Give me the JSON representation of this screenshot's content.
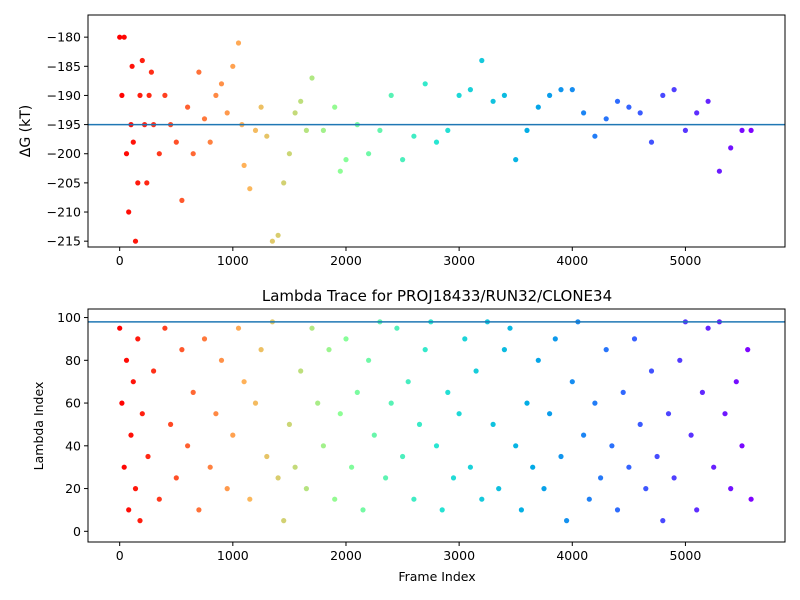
{
  "chart_data": [
    {
      "type": "scatter",
      "title": "",
      "xlabel": "",
      "ylabel": "ΔG (kT)",
      "xlim": [
        -280,
        5880
      ],
      "ylim": [
        -216,
        -176.2
      ],
      "xticks": [
        0,
        1000,
        2000,
        3000,
        4000,
        5000
      ],
      "xtick_labels": [
        "0",
        "1000",
        "2000",
        "3000",
        "4000",
        "5000"
      ],
      "yticks": [
        -215,
        -210,
        -205,
        -200,
        -195,
        -190,
        -185,
        -180
      ],
      "ytick_labels": [
        "−215",
        "−210",
        "−205",
        "−200",
        "−195",
        "−190",
        "−185",
        "−180"
      ],
      "hline": -195,
      "colormap": "rainbow (red at frame 0 → violet at frame 5600)",
      "grid": false,
      "series_points": [
        [
          0,
          -180
        ],
        [
          20,
          -190
        ],
        [
          40,
          -180
        ],
        [
          60,
          -200
        ],
        [
          80,
          -210
        ],
        [
          100,
          -195
        ],
        [
          110,
          -185
        ],
        [
          120,
          -198
        ],
        [
          140,
          -215
        ],
        [
          160,
          -205
        ],
        [
          180,
          -190
        ],
        [
          200,
          -184
        ],
        [
          220,
          -195
        ],
        [
          240,
          -205
        ],
        [
          260,
          -190
        ],
        [
          280,
          -186
        ],
        [
          300,
          -195
        ],
        [
          350,
          -200
        ],
        [
          400,
          -190
        ],
        [
          450,
          -195
        ],
        [
          500,
          -198
        ],
        [
          550,
          -208
        ],
        [
          600,
          -192
        ],
        [
          650,
          -200
        ],
        [
          700,
          -186
        ],
        [
          750,
          -194
        ],
        [
          800,
          -198
        ],
        [
          850,
          -190
        ],
        [
          900,
          -188
        ],
        [
          950,
          -193
        ],
        [
          1000,
          -185
        ],
        [
          1050,
          -181
        ],
        [
          1080,
          -195
        ],
        [
          1100,
          -202
        ],
        [
          1150,
          -206
        ],
        [
          1200,
          -196
        ],
        [
          1250,
          -192
        ],
        [
          1300,
          -197
        ],
        [
          1350,
          -215
        ],
        [
          1400,
          -214
        ],
        [
          1450,
          -205
        ],
        [
          1500,
          -200
        ],
        [
          1550,
          -193
        ],
        [
          1600,
          -191
        ],
        [
          1650,
          -196
        ],
        [
          1700,
          -187
        ],
        [
          1800,
          -196
        ],
        [
          1900,
          -192
        ],
        [
          1950,
          -203
        ],
        [
          2000,
          -201
        ],
        [
          2100,
          -195
        ],
        [
          2200,
          -200
        ],
        [
          2300,
          -196
        ],
        [
          2400,
          -190
        ],
        [
          2500,
          -201
        ],
        [
          2600,
          -197
        ],
        [
          2700,
          -188
        ],
        [
          2800,
          -198
        ],
        [
          2900,
          -196
        ],
        [
          3000,
          -190
        ],
        [
          3100,
          -189
        ],
        [
          3200,
          -184
        ],
        [
          3300,
          -191
        ],
        [
          3400,
          -190
        ],
        [
          3500,
          -201
        ],
        [
          3600,
          -196
        ],
        [
          3700,
          -192
        ],
        [
          3800,
          -190
        ],
        [
          3900,
          -189
        ],
        [
          4000,
          -189
        ],
        [
          4100,
          -193
        ],
        [
          4200,
          -197
        ],
        [
          4300,
          -194
        ],
        [
          4400,
          -191
        ],
        [
          4500,
          -192
        ],
        [
          4600,
          -193
        ],
        [
          4700,
          -198
        ],
        [
          4800,
          -190
        ],
        [
          4900,
          -189
        ],
        [
          5000,
          -196
        ],
        [
          5100,
          -193
        ],
        [
          5200,
          -191
        ],
        [
          5300,
          -203
        ],
        [
          5400,
          -199
        ],
        [
          5500,
          -196
        ],
        [
          5580,
          -196
        ]
      ]
    },
    {
      "type": "scatter",
      "title": "Lambda Trace for PROJ18433/RUN32/CLONE34",
      "xlabel": "Frame Index",
      "ylabel": "Lambda Index",
      "xlim": [
        -280,
        5880
      ],
      "ylim": [
        -5,
        104
      ],
      "xticks": [
        0,
        1000,
        2000,
        3000,
        4000,
        5000
      ],
      "xtick_labels": [
        "0",
        "1000",
        "2000",
        "3000",
        "4000",
        "5000"
      ],
      "yticks": [
        0,
        20,
        40,
        60,
        80,
        100
      ],
      "ytick_labels": [
        "0",
        "20",
        "40",
        "60",
        "80",
        "100"
      ],
      "hline": 98,
      "colormap": "rainbow (red at frame 0 → violet at frame 5600)",
      "grid": false,
      "series_points": [
        [
          0,
          95
        ],
        [
          20,
          60
        ],
        [
          40,
          30
        ],
        [
          60,
          80
        ],
        [
          80,
          10
        ],
        [
          100,
          45
        ],
        [
          120,
          70
        ],
        [
          140,
          20
        ],
        [
          160,
          90
        ],
        [
          180,
          5
        ],
        [
          200,
          55
        ],
        [
          250,
          35
        ],
        [
          300,
          75
        ],
        [
          350,
          15
        ],
        [
          400,
          95
        ],
        [
          450,
          50
        ],
        [
          500,
          25
        ],
        [
          550,
          85
        ],
        [
          600,
          40
        ],
        [
          650,
          65
        ],
        [
          700,
          10
        ],
        [
          750,
          90
        ],
        [
          800,
          30
        ],
        [
          850,
          55
        ],
        [
          900,
          80
        ],
        [
          950,
          20
        ],
        [
          1000,
          45
        ],
        [
          1050,
          95
        ],
        [
          1100,
          70
        ],
        [
          1150,
          15
        ],
        [
          1200,
          60
        ],
        [
          1250,
          85
        ],
        [
          1300,
          35
        ],
        [
          1350,
          98
        ],
        [
          1400,
          25
        ],
        [
          1450,
          5
        ],
        [
          1500,
          50
        ],
        [
          1550,
          30
        ],
        [
          1600,
          75
        ],
        [
          1650,
          20
        ],
        [
          1700,
          95
        ],
        [
          1750,
          60
        ],
        [
          1800,
          40
        ],
        [
          1850,
          85
        ],
        [
          1900,
          15
        ],
        [
          1950,
          55
        ],
        [
          2000,
          90
        ],
        [
          2050,
          30
        ],
        [
          2100,
          65
        ],
        [
          2150,
          10
        ],
        [
          2200,
          80
        ],
        [
          2250,
          45
        ],
        [
          2300,
          98
        ],
        [
          2350,
          25
        ],
        [
          2400,
          60
        ],
        [
          2450,
          95
        ],
        [
          2500,
          35
        ],
        [
          2550,
          70
        ],
        [
          2600,
          15
        ],
        [
          2650,
          50
        ],
        [
          2700,
          85
        ],
        [
          2750,
          98
        ],
        [
          2800,
          40
        ],
        [
          2850,
          10
        ],
        [
          2900,
          65
        ],
        [
          2950,
          25
        ],
        [
          3000,
          55
        ],
        [
          3050,
          90
        ],
        [
          3100,
          30
        ],
        [
          3150,
          75
        ],
        [
          3200,
          15
        ],
        [
          3250,
          98
        ],
        [
          3300,
          50
        ],
        [
          3350,
          20
        ],
        [
          3400,
          85
        ],
        [
          3450,
          95
        ],
        [
          3500,
          40
        ],
        [
          3550,
          10
        ],
        [
          3600,
          60
        ],
        [
          3650,
          30
        ],
        [
          3700,
          80
        ],
        [
          3750,
          20
        ],
        [
          3800,
          55
        ],
        [
          3850,
          90
        ],
        [
          3900,
          35
        ],
        [
          3950,
          5
        ],
        [
          4000,
          70
        ],
        [
          4050,
          98
        ],
        [
          4100,
          45
        ],
        [
          4150,
          15
        ],
        [
          4200,
          60
        ],
        [
          4250,
          25
        ],
        [
          4300,
          85
        ],
        [
          4350,
          40
        ],
        [
          4400,
          10
        ],
        [
          4450,
          65
        ],
        [
          4500,
          30
        ],
        [
          4550,
          90
        ],
        [
          4600,
          50
        ],
        [
          4650,
          20
        ],
        [
          4700,
          75
        ],
        [
          4750,
          35
        ],
        [
          4800,
          5
        ],
        [
          4850,
          55
        ],
        [
          4900,
          25
        ],
        [
          4950,
          80
        ],
        [
          5000,
          98
        ],
        [
          5050,
          45
        ],
        [
          5100,
          10
        ],
        [
          5150,
          65
        ],
        [
          5200,
          95
        ],
        [
          5250,
          30
        ],
        [
          5300,
          98
        ],
        [
          5350,
          55
        ],
        [
          5400,
          20
        ],
        [
          5450,
          70
        ],
        [
          5500,
          40
        ],
        [
          5550,
          85
        ],
        [
          5580,
          15
        ]
      ]
    }
  ]
}
